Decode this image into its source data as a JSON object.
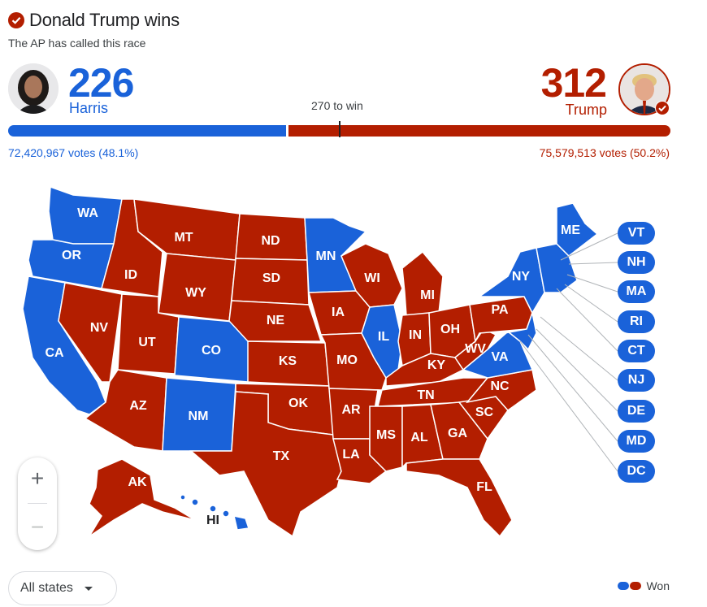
{
  "header": {
    "headline": "Donald Trump wins",
    "subtitle": "The AP has called this race"
  },
  "candidates": {
    "harris": {
      "name": "Harris",
      "electoral_votes": "226",
      "votes_text": "72,420,967 votes (48.1%)",
      "color": "#1a62d9"
    },
    "trump": {
      "name": "Trump",
      "electoral_votes": "312",
      "votes_text": "75,579,513 votes (50.2%)",
      "color": "#b31e00"
    }
  },
  "win_threshold_label": "270 to win",
  "bar": {
    "harris_share": 0.4196,
    "threshold_share": 0.5
  },
  "states": {
    "WA": "WA",
    "OR": "OR",
    "CA": "CA",
    "ID": "ID",
    "NV": "NV",
    "MT": "MT",
    "WY": "WY",
    "UT": "UT",
    "AZ": "AZ",
    "CO": "CO",
    "NM": "NM",
    "ND": "ND",
    "SD": "SD",
    "NE": "NE",
    "KS": "KS",
    "OK": "OK",
    "TX": "TX",
    "MN": "MN",
    "IA": "IA",
    "MO": "MO",
    "AR": "AR",
    "LA": "LA",
    "WI": "WI",
    "IL": "IL",
    "MI": "MI",
    "IN": "IN",
    "OH": "OH",
    "KY": "KY",
    "TN": "TN",
    "MS": "MS",
    "AL": "AL",
    "GA": "GA",
    "FL": "FL",
    "SC": "SC",
    "NC": "NC",
    "VA": "VA",
    "WV": "WV",
    "PA": "PA",
    "NY": "NY",
    "ME": "ME",
    "AK": "AK",
    "HI": "HI"
  },
  "small_states": [
    "VT",
    "NH",
    "MA",
    "RI",
    "CT",
    "NJ",
    "DE",
    "MD",
    "DC"
  ],
  "zoom": {
    "in": "+",
    "out": "−"
  },
  "footer": {
    "filter_label": "All states",
    "legend_label": "Won"
  }
}
